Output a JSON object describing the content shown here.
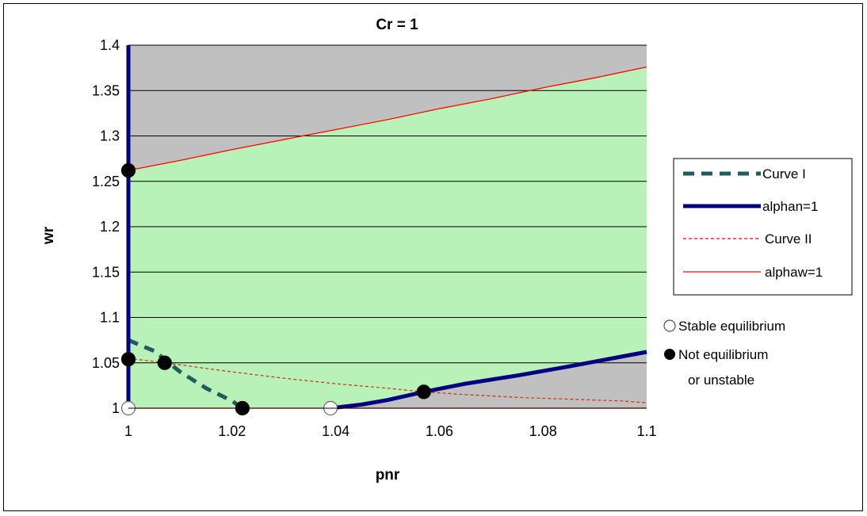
{
  "chart_data": {
    "type": "line",
    "title": "Cr = 1",
    "xlabel": "pnr",
    "ylabel": "wr",
    "xlim": [
      1,
      1.1
    ],
    "ylim": [
      1,
      1.4
    ],
    "x_ticks": [
      "1",
      "1.02",
      "1.04",
      "1.06",
      "1.08",
      "1.1"
    ],
    "y_ticks": [
      "1",
      "1.05",
      "1.1",
      "1.15",
      "1.2",
      "1.25",
      "1.3",
      "1.35",
      "1.4"
    ],
    "grid": "horizontal",
    "legend_position": "right",
    "shaded_region": {
      "color": "#b8f2b8",
      "upper": [
        [
          1,
          1.262
        ],
        [
          1.1,
          1.376
        ]
      ],
      "lower": [
        [
          1,
          1
        ],
        [
          1.039,
          1
        ],
        [
          1.05,
          1.009
        ],
        [
          1.057,
          1.018
        ],
        [
          1.07,
          1.031
        ],
        [
          1.08,
          1.042
        ],
        [
          1.09,
          1.052
        ],
        [
          1.1,
          1.062
        ]
      ]
    },
    "series": [
      {
        "name": "Curve I",
        "color": "#1f5c5c",
        "style": "dashed-thick",
        "points": [
          [
            1,
            1.075
          ],
          [
            1.005,
            1.063
          ],
          [
            1.01,
            1.04
          ],
          [
            1.015,
            1.022
          ],
          [
            1.02,
            1.008
          ],
          [
            1.022,
            1.0
          ]
        ]
      },
      {
        "name": "alphan=1",
        "color": "#000080",
        "style": "solid-thick",
        "points": [
          [
            1.039,
            1.0
          ],
          [
            1.045,
            1.004
          ],
          [
            1.05,
            1.009
          ],
          [
            1.057,
            1.018
          ],
          [
            1.065,
            1.027
          ],
          [
            1.075,
            1.036
          ],
          [
            1.085,
            1.046
          ],
          [
            1.1,
            1.062
          ]
        ],
        "vertical_segment": {
          "x": 1,
          "y_from": 1.0,
          "y_to": 1.4
        }
      },
      {
        "name": "Curve II",
        "color": "#cc3300",
        "style": "dotted-thin",
        "points": [
          [
            1,
            1.055
          ],
          [
            1.007,
            1.05
          ],
          [
            1.02,
            1.04
          ],
          [
            1.03,
            1.033
          ],
          [
            1.04,
            1.027
          ],
          [
            1.05,
            1.022
          ],
          [
            1.057,
            1.018
          ],
          [
            1.065,
            1.015
          ],
          [
            1.075,
            1.012
          ],
          [
            1.085,
            1.01
          ],
          [
            1.095,
            1.008
          ],
          [
            1.1,
            1.006
          ]
        ]
      },
      {
        "name": "alphaw=1",
        "color": "#ff0000",
        "style": "solid-thin",
        "points": [
          [
            1,
            1.262
          ],
          [
            1.01,
            1.273
          ],
          [
            1.02,
            1.285
          ],
          [
            1.03,
            1.296
          ],
          [
            1.04,
            1.307
          ],
          [
            1.05,
            1.318
          ],
          [
            1.06,
            1.33
          ],
          [
            1.07,
            1.341
          ],
          [
            1.08,
            1.353
          ],
          [
            1.09,
            1.364
          ],
          [
            1.1,
            1.376
          ]
        ],
        "bottom_segment": {
          "y": 1.0,
          "x_from": 1,
          "x_to": 1.1
        }
      }
    ],
    "markers": [
      {
        "label": "Stable equilibrium",
        "kind": "open",
        "points": [
          [
            1,
            1.0
          ],
          [
            1.039,
            1.0
          ]
        ]
      },
      {
        "label": "Not equilibrium or unstable",
        "kind": "filled",
        "points": [
          [
            1,
            1.262
          ],
          [
            1,
            1.054
          ],
          [
            1.007,
            1.05
          ],
          [
            1.022,
            1.0
          ],
          [
            1.057,
            1.018
          ]
        ]
      }
    ]
  },
  "legend": {
    "items": [
      "Curve I",
      "alphan=1",
      "Curve II",
      "alphaw=1"
    ],
    "marker_stable": "Stable equilibrium",
    "marker_unstable_line1": "Not equilibrium",
    "marker_unstable_line2": "or unstable"
  },
  "colors": {
    "plot_background": "#c0c0c0",
    "region_fill": "#b8f2b8",
    "gridline": "#000000"
  }
}
